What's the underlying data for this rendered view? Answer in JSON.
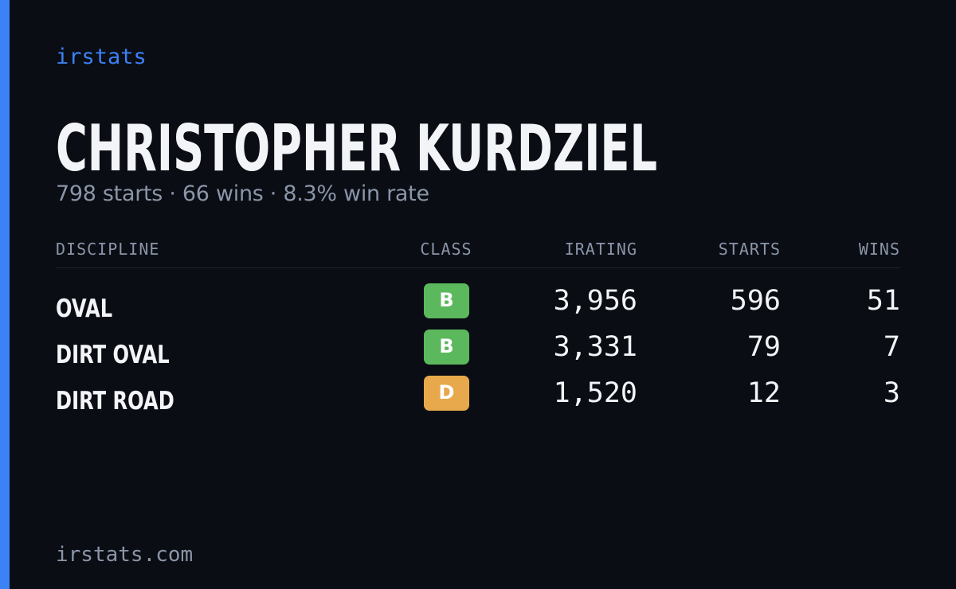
{
  "brand": "irstats",
  "player": {
    "name": "CHRISTOPHER KURDZIEL",
    "summary": "798 starts · 66 wins · 8.3% win rate"
  },
  "table": {
    "headers": [
      "DISCIPLINE",
      "CLASS",
      "IRATING",
      "STARTS",
      "WINS"
    ],
    "rows": [
      [
        "OVAL",
        "B",
        "3,956",
        "596",
        "51"
      ],
      [
        "DIRT OVAL",
        "B",
        "3,331",
        "79",
        "7"
      ],
      [
        "DIRT ROAD",
        "D",
        "1,520",
        "12",
        "3"
      ]
    ],
    "badge_colors": [
      "#5cb85c",
      "#5cb85c",
      "#e8a94c"
    ]
  },
  "footer": "irstats.com"
}
